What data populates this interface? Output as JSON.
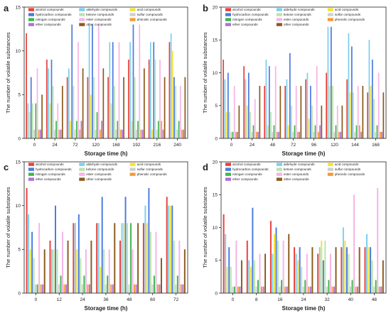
{
  "figure": {
    "legend_labels": [
      "alcohol compounds",
      "aldehyde compounds",
      "acid compounds",
      "hydrocarbon compounds",
      "ketone compounds",
      "sulfur compounds",
      "nitrogen compounds",
      "ester compounds",
      "phenolic compounds",
      "ether compounds",
      "other compounds"
    ],
    "colors": [
      "#e8413a",
      "#7ecfee",
      "#f3e23a",
      "#4a7be0",
      "#b7e5b0",
      "#cfcfcf",
      "#3fb74c",
      "#f6b3e6",
      "#f39a34",
      "#b06fd9",
      "#8b5a1c"
    ]
  },
  "chart_data": [
    {
      "panel": "a",
      "type": "bar",
      "xlabel": "Storage time (h)",
      "ylabel": "The number of volatile substances",
      "ylim": [
        0,
        15
      ],
      "yticks": [
        0,
        5,
        10,
        15
      ],
      "categories": [
        "0",
        "24",
        "72",
        "120",
        "168",
        "192",
        "216",
        "240"
      ],
      "series": [
        {
          "name": "alcohol compounds",
          "values": [
            12,
            9,
            7,
            7,
            7,
            9,
            9,
            11
          ]
        },
        {
          "name": "aldehyde compounds",
          "values": [
            4,
            8,
            8,
            13,
            11,
            11,
            11,
            12
          ]
        },
        {
          "name": "acid compounds",
          "values": [
            3,
            4,
            2,
            5,
            4,
            2,
            1,
            10
          ]
        },
        {
          "name": "hydrocarbon compounds",
          "values": [
            7,
            9,
            13,
            13,
            11,
            13,
            11,
            7
          ]
        },
        {
          "name": "ketone compounds",
          "values": [
            4,
            6,
            6,
            7,
            6,
            7,
            9,
            6
          ]
        },
        {
          "name": "sulfur compounds",
          "values": [
            1,
            1,
            1,
            1,
            1,
            1,
            1,
            1
          ]
        },
        {
          "name": "nitrogen compounds",
          "values": [
            4,
            2,
            2,
            3,
            2,
            2,
            2,
            2
          ]
        },
        {
          "name": "ester compounds",
          "values": [
            8,
            4,
            11,
            13,
            11,
            13,
            9,
            6
          ]
        },
        {
          "name": "phenolic compounds",
          "values": [
            1,
            1,
            1,
            1,
            1,
            1,
            2,
            1
          ]
        },
        {
          "name": "ether compounds",
          "values": [
            1,
            1,
            2,
            2,
            1,
            1,
            1,
            1
          ]
        },
        {
          "name": "other compounds",
          "values": [
            5,
            6,
            8,
            8,
            7,
            8,
            7,
            7
          ]
        }
      ]
    },
    {
      "panel": "b",
      "type": "bar",
      "xlabel": "Storage time (h)",
      "ylabel": "The number of volatile substances",
      "ylim": [
        0,
        20
      ],
      "yticks": [
        0,
        5,
        10,
        15,
        20
      ],
      "categories": [
        "0",
        "24",
        "48",
        "72",
        "96",
        "120",
        "144",
        "168"
      ],
      "series": [
        {
          "name": "alcohol compounds",
          "values": [
            12,
            11,
            8,
            8,
            9,
            10,
            9,
            7
          ]
        },
        {
          "name": "aldehyde compounds",
          "values": [
            9,
            9,
            12,
            9,
            10,
            17,
            16,
            15
          ]
        },
        {
          "name": "acid compounds",
          "values": [
            4,
            5,
            2,
            2,
            3,
            8,
            7,
            8
          ]
        },
        {
          "name": "hydrocarbon compounds",
          "values": [
            10,
            10,
            11,
            13,
            8,
            17,
            14,
            12
          ]
        },
        {
          "name": "ketone compounds",
          "values": [
            4,
            4,
            4,
            5,
            5,
            8,
            7,
            6
          ]
        },
        {
          "name": "sulfur compounds",
          "values": [
            1,
            1,
            1,
            1,
            1,
            1,
            1,
            1
          ]
        },
        {
          "name": "nitrogen compounds",
          "values": [
            1,
            2,
            2,
            2,
            2,
            2,
            2,
            2
          ]
        },
        {
          "name": "ester compounds",
          "values": [
            8,
            6,
            11,
            8,
            11,
            5,
            8,
            10
          ]
        },
        {
          "name": "phenolic compounds",
          "values": [
            1,
            1,
            1,
            1,
            1,
            1,
            2,
            1
          ]
        },
        {
          "name": "ether compounds",
          "values": [
            1,
            1,
            1,
            1,
            2,
            1,
            1,
            1
          ]
        },
        {
          "name": "other compounds",
          "values": [
            5,
            8,
            8,
            8,
            5,
            5,
            8,
            7
          ]
        }
      ]
    },
    {
      "panel": "c",
      "type": "bar",
      "xlabel": "Storage time (h)",
      "ylabel": "The number of volatile substances",
      "ylim": [
        0,
        15
      ],
      "yticks": [
        0,
        5,
        10,
        15
      ],
      "categories": [
        "0",
        "12",
        "24",
        "36",
        "48",
        "60",
        "72"
      ],
      "series": [
        {
          "name": "alcohol compounds",
          "values": [
            12,
            6,
            8,
            8,
            6,
            8,
            11
          ]
        },
        {
          "name": "aldehyde compounds",
          "values": [
            9,
            5,
            8,
            8,
            8,
            10,
            10
          ]
        },
        {
          "name": "acid compounds",
          "values": [
            5,
            5,
            5,
            3,
            8,
            8,
            10
          ]
        },
        {
          "name": "hydrocarbon compounds",
          "values": [
            7,
            10,
            9,
            11,
            11,
            12,
            10
          ]
        },
        {
          "name": "ketone compounds",
          "values": [
            4,
            5,
            4,
            5,
            8,
            7,
            6
          ]
        },
        {
          "name": "sulfur compounds",
          "values": [
            1,
            1,
            1,
            1,
            1,
            1,
            1
          ]
        },
        {
          "name": "nitrogen compounds",
          "values": [
            1,
            2,
            2,
            2,
            8,
            2,
            2
          ]
        },
        {
          "name": "ester compounds",
          "values": [
            8,
            7,
            5,
            5,
            5,
            7,
            6
          ]
        },
        {
          "name": "phenolic compounds",
          "values": [
            1,
            1,
            1,
            1,
            1,
            1,
            1
          ]
        },
        {
          "name": "ether compounds",
          "values": [
            1,
            1,
            1,
            1,
            1,
            1,
            1
          ]
        },
        {
          "name": "other compounds",
          "values": [
            5,
            6,
            6,
            8,
            8,
            4,
            5
          ]
        }
      ]
    },
    {
      "panel": "d",
      "type": "bar",
      "xlabel": "Storage time (h)",
      "ylabel": "The number of volatile substances",
      "ylim": [
        0,
        20
      ],
      "yticks": [
        0,
        5,
        10,
        15,
        20
      ],
      "categories": [
        "0",
        "8",
        "16",
        "24",
        "32",
        "40",
        "48"
      ],
      "series": [
        {
          "name": "alcohol compounds",
          "values": [
            12,
            8,
            11,
            7,
            6,
            7,
            7
          ]
        },
        {
          "name": "aldehyde compounds",
          "values": [
            9,
            5,
            6,
            6,
            7,
            10,
            9
          ]
        },
        {
          "name": "acid compounds",
          "values": [
            4,
            4,
            9,
            5,
            8,
            8,
            7
          ]
        },
        {
          "name": "hydrocarbon compounds",
          "values": [
            7,
            13,
            10,
            7,
            5,
            7,
            7
          ]
        },
        {
          "name": "ketone compounds",
          "values": [
            4,
            5,
            8,
            4,
            8,
            6,
            5
          ]
        },
        {
          "name": "sulfur compounds",
          "values": [
            1,
            1,
            1,
            1,
            1,
            1,
            1
          ]
        },
        {
          "name": "nitrogen compounds",
          "values": [
            1,
            2,
            2,
            2,
            2,
            2,
            2
          ]
        },
        {
          "name": "ester compounds",
          "values": [
            8,
            6,
            8,
            6,
            6,
            15,
            16
          ]
        },
        {
          "name": "phenolic compounds",
          "values": [
            1,
            1,
            1,
            1,
            1,
            1,
            1
          ]
        },
        {
          "name": "ether compounds",
          "values": [
            1,
            1,
            1,
            1,
            1,
            1,
            1
          ]
        },
        {
          "name": "other compounds",
          "values": [
            5,
            6,
            9,
            7,
            7,
            7,
            5
          ]
        }
      ]
    }
  ]
}
